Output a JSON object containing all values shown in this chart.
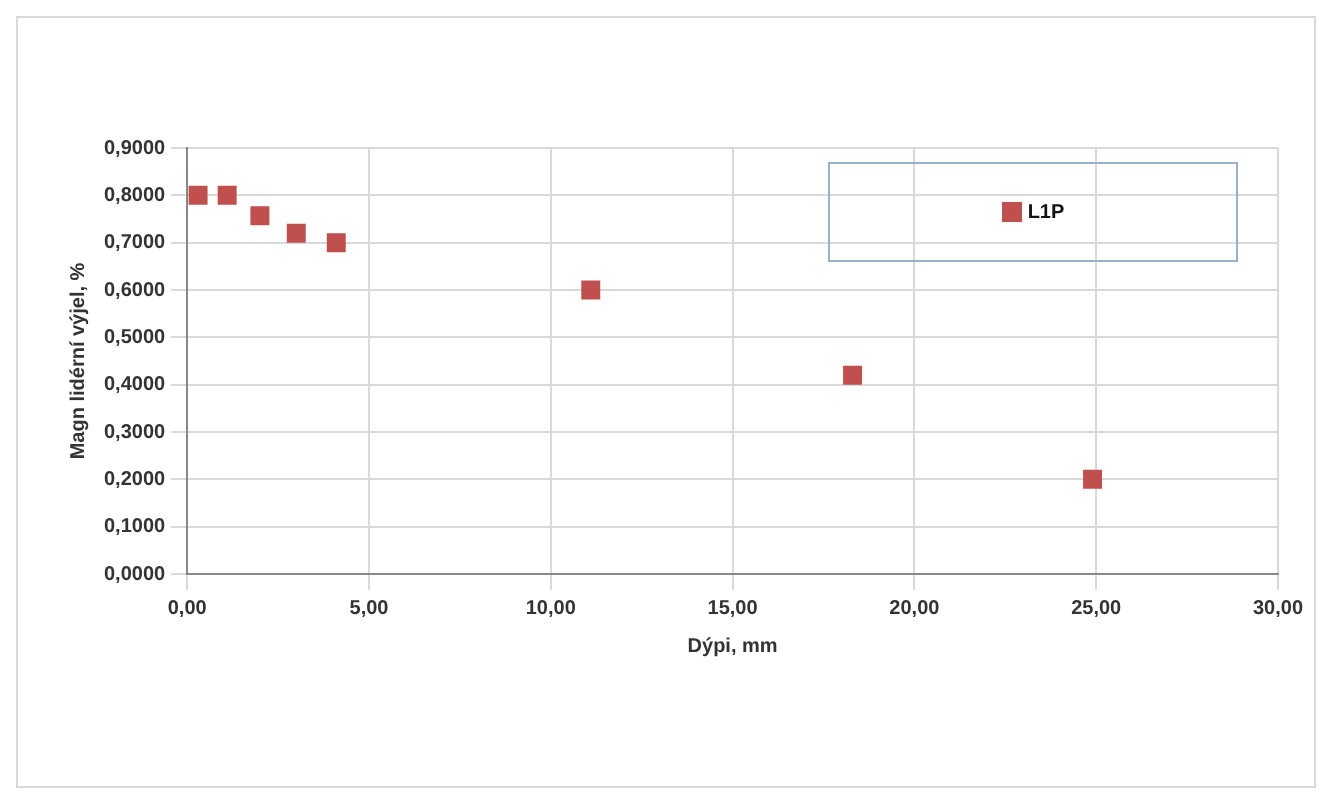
{
  "chart_data": {
    "type": "scatter",
    "xlabel": "Dýpi, mm",
    "ylabel": "Magn lidérní výjel, %",
    "x": [
      0.3,
      1.1,
      2.0,
      3.0,
      4.1,
      11.1,
      18.3,
      24.9
    ],
    "series": [
      {
        "name": "L1P",
        "color": "#c0504d",
        "values": [
          0.8,
          0.8,
          0.757,
          0.72,
          0.7,
          0.6,
          0.42,
          0.2
        ]
      }
    ],
    "xlim": [
      0,
      30
    ],
    "xticks": [
      {
        "value": 0,
        "label": "0,00"
      },
      {
        "value": 5,
        "label": "5,00"
      },
      {
        "value": 10,
        "label": "10,00"
      },
      {
        "value": 15,
        "label": "15,00"
      },
      {
        "value": 20,
        "label": "20,00"
      },
      {
        "value": 25,
        "label": "25,00"
      },
      {
        "value": 30,
        "label": "30,00"
      }
    ],
    "ylim": [
      0,
      0.9
    ],
    "yticks": [
      {
        "value": 0,
        "label": "0,0000"
      },
      {
        "value": 0.1,
        "label": "0,1000"
      },
      {
        "value": 0.2,
        "label": "0,2000"
      },
      {
        "value": 0.3,
        "label": "0,3000"
      },
      {
        "value": 0.4,
        "label": "0,4000"
      },
      {
        "value": 0.5,
        "label": "0,5000"
      },
      {
        "value": 0.6,
        "label": "0,6000"
      },
      {
        "value": 0.7,
        "label": "0,7000"
      },
      {
        "value": 0.8,
        "label": "0,8000"
      },
      {
        "value": 0.9,
        "label": "0,9000"
      }
    ],
    "grid": true,
    "legend": "top right",
    "marker": "square"
  }
}
